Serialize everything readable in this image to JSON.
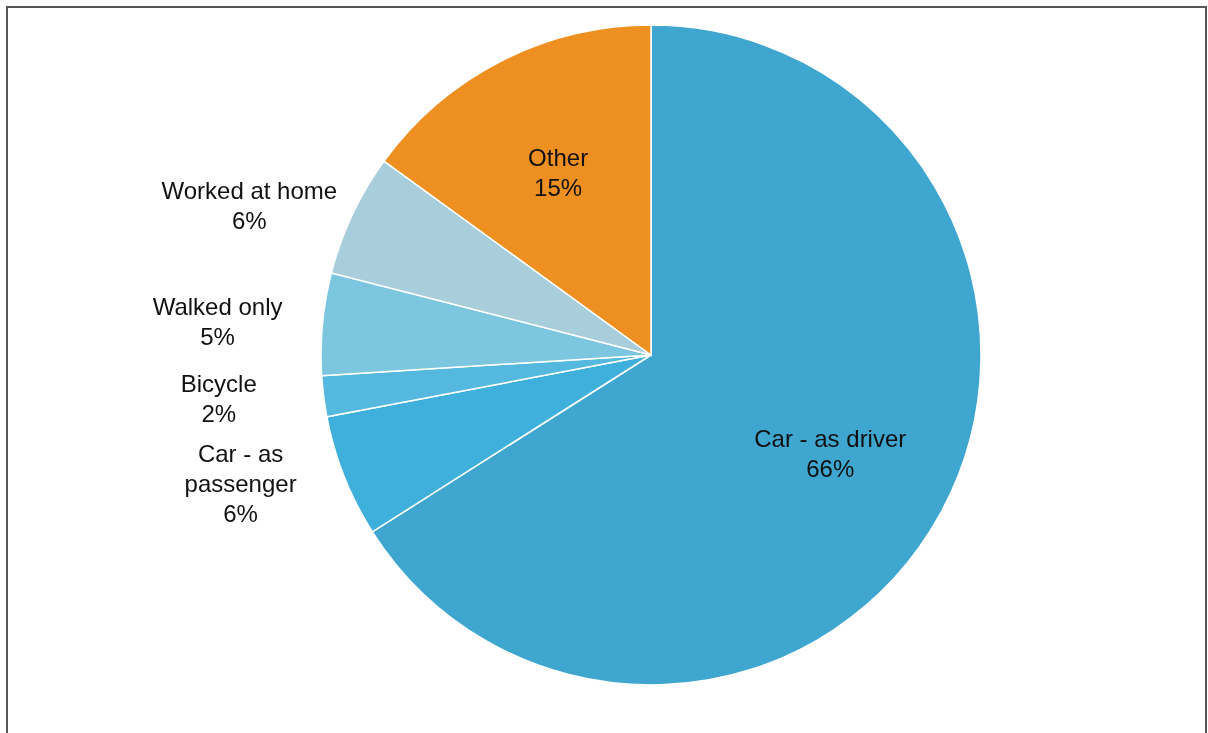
{
  "chart_data": {
    "type": "pie",
    "categories": [
      "Car - as driver",
      "Car - as passenger",
      "Bicycle",
      "Walked only",
      "Worked at home",
      "Other"
    ],
    "values": [
      66,
      6,
      2,
      5,
      6,
      15
    ],
    "colors": [
      "#3ea6cf",
      "#3fb0dc",
      "#55b9df",
      "#7dc6e0",
      "#a8cedb",
      "#ee8f22"
    ],
    "value_labels": [
      "66%",
      "6%",
      "2%",
      "5%",
      "6%",
      "15%"
    ]
  }
}
